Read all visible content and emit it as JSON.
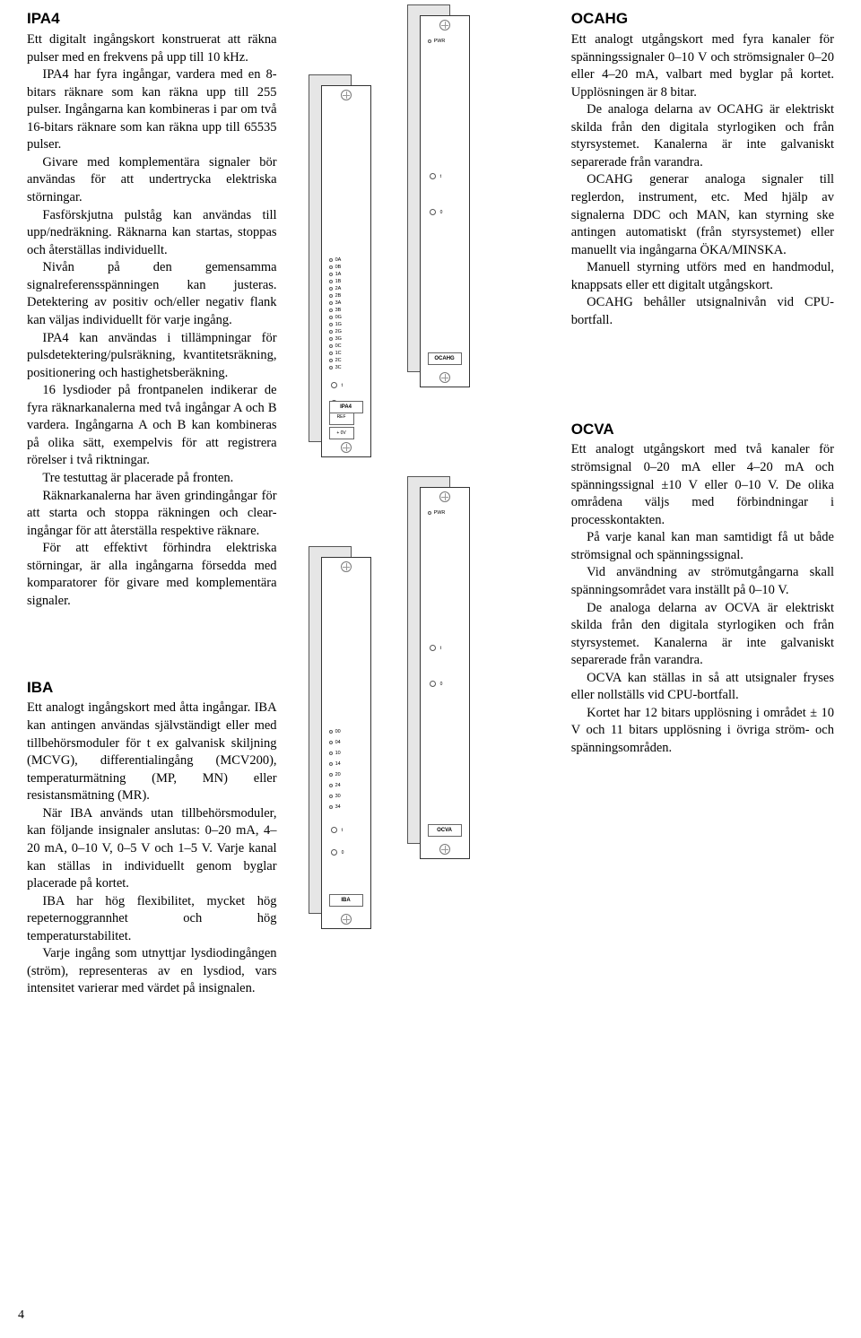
{
  "page_number": "4",
  "ipa4": {
    "title": "IPA4",
    "p1": "Ett digitalt ingångskort konstruerat att räkna pulser med en frekvens på upp till 10 kHz.",
    "p2": "IPA4 har fyra ingångar, vardera med en 8-bitars räknare som kan räkna upp till 255 pulser. Ingångarna kan kombineras i par om två 16-bitars räknare som kan räkna upp till 65535 pulser.",
    "p3": "Givare med komplementära signaler bör användas för att undertrycka elektriska störningar.",
    "p4": "Fasförskjutna pulståg kan användas till upp/nedräkning. Räknarna kan startas, stoppas och återställas individuellt.",
    "p5": "Nivån på den gemensamma signalreferensspänningen kan justeras. Detektering av positiv och/eller negativ flank kan väljas individuellt för varje ingång.",
    "p6": "IPA4 kan användas i tillämpningar för pulsdetektering/pulsräkning, kvantitetsräkning, positionering och hastighetsberäkning.",
    "p7": "16 lysdioder på frontpanelen indikerar de fyra räknarkanalerna med två ingångar A och B vardera. Ingångarna A och B kan kombineras på olika sätt, exempelvis för att registrera rörelser i två riktningar.",
    "p8": "Tre testuttag är placerade på fronten.",
    "p9": "Räknarkanalerna har även grindingångar för att starta och stoppa räkningen och clear-ingångar för att återställa respektive räknare.",
    "p10": "För att effektivt förhindra elektriska störningar, är alla ingångarna försedda med komparatorer för givare med komplementära signaler.",
    "card_label": "IPA4",
    "leds": [
      "0A",
      "0B",
      "1A",
      "1B",
      "2A",
      "2B",
      "3A",
      "3B",
      "0G",
      "1G",
      "2G",
      "3G",
      "0C",
      "1C",
      "2C",
      "3C"
    ],
    "ref_label": "REF",
    "ov_label": "0V"
  },
  "iba": {
    "title": "IBA",
    "p1": "Ett analogt ingångskort med åtta ingångar. IBA kan antingen användas självständigt eller med tillbehörsmoduler för t ex galvanisk skiljning (MCVG), differentialingång (MCV200), temperaturmätning (MP, MN) eller resistansmätning (MR).",
    "p2": "När IBA används utan tillbehörsmoduler, kan följande insignaler anslutas: 0–20 mA, 4–20 mA, 0–10 V, 0–5 V och 1–5 V. Varje kanal kan ställas in individuellt genom byglar placerade på kortet.",
    "p3": "IBA har hög flexibilitet, mycket hög repeternoggrannhet och hög temperaturstabilitet.",
    "p4": "Varje ingång som utnyttjar lysdiodingången (ström), representeras av en lysdiod, vars intensitet varierar med värdet på insignalen.",
    "card_label": "IBA",
    "leds": [
      "00",
      "04",
      "10",
      "14",
      "20",
      "24",
      "30",
      "34"
    ]
  },
  "ocahg": {
    "title": "OCAHG",
    "p1": "Ett analogt utgångskort med fyra kanaler för spänningssignaler 0–10 V och strömsignaler 0–20 eller 4–20 mA, valbart med byglar på kortet. Upplösningen är 8 bitar.",
    "p2": "De analoga delarna av OCAHG är elektriskt skilda från den digitala styrlogiken och från styrsystemet. Kanalerna är inte galvaniskt separerade från varandra.",
    "p3": "OCAHG generar analoga signaler till reglerdon, instrument, etc. Med hjälp av signalerna DDC och MAN, kan styrning ske antingen automatiskt (från styrsystemet) eller manuellt via ingångarna ÖKA/MINSKA.",
    "p4": "Manuell styrning utförs med en handmodul, knappsats eller ett digitalt utgångskort.",
    "p5": "OCAHG behåller utsignalnivån vid CPU-bortfall.",
    "card_label": "OCAHG",
    "pwr": "PWR"
  },
  "ocva": {
    "title": "OCVA",
    "p1": "Ett analogt utgångskort med två kanaler för strömsignal 0–20 mA eller 4–20 mA och spänningssignal ±10 V eller 0–10 V. De olika områdena väljs med förbindningar i processkontakten.",
    "p2": "På varje kanal kan man samtidigt få ut både strömsignal och spänningssignal.",
    "p3": "Vid användning av strömutgångarna skall spänningsområdet vara inställt på 0–10 V.",
    "p4": "De analoga delarna av OCVA är elektriskt skilda från den digitala styrlogiken och från styrsystemet. Kanalerna är inte galvaniskt separerade från varandra.",
    "p5": "OCVA kan ställas in så att utsignaler fryses eller nollställs vid CPU-bortfall.",
    "p6": "Kortet har 12 bitars upplösning i området ± 10 V och 11 bitars upplösning i övriga ström- och spänningsområden.",
    "card_label": "OCVA",
    "pwr": "PWR"
  },
  "colors": {
    "bg": "#ffffff",
    "text": "#000000",
    "card_back": "#e6e6e6",
    "line": "#555555"
  }
}
